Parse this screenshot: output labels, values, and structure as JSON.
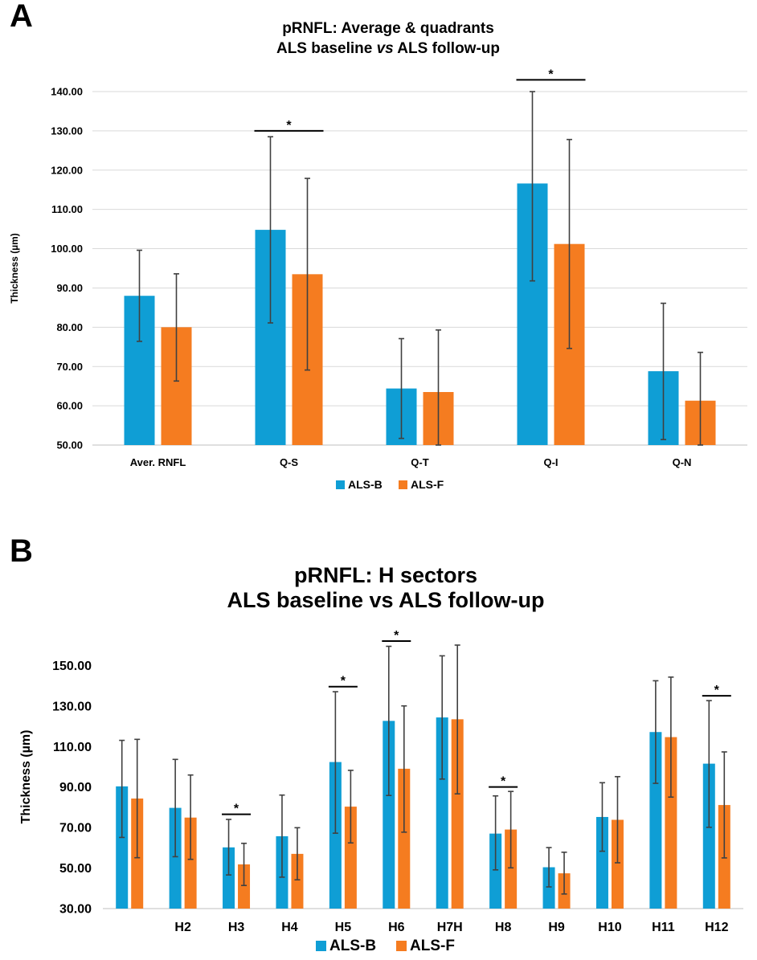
{
  "panels": [
    {
      "letter": "A"
    },
    {
      "letter": "B"
    }
  ],
  "chart_data": [
    {
      "type": "bar",
      "title": "pRNFL: Average & quadrants",
      "subtitle_parts": [
        "ALS baseline ",
        "vs",
        " ALS follow-up"
      ],
      "ylabel": "Thickness (µm)",
      "xlabel": "",
      "ylim": [
        50,
        140
      ],
      "ytick_step": 10,
      "ytick_labels": [
        "50.00",
        "60.00",
        "70.00",
        "80.00",
        "90.00",
        "100.00",
        "110.00",
        "120.00",
        "130.00",
        "140.00"
      ],
      "grid": true,
      "legend_position": "bottom",
      "categories": [
        "Aver. RNFL",
        "Q-S",
        "Q-T",
        "Q-I",
        "Q-N"
      ],
      "series": [
        {
          "name": "ALS-B",
          "color": "#0f9ed5",
          "values": [
            88.0,
            104.8,
            64.4,
            116.6,
            68.8
          ],
          "err_low": [
            76.4,
            81.1,
            51.7,
            91.8,
            51.4
          ],
          "err_high": [
            99.6,
            128.5,
            77.1,
            141.6,
            86.1
          ]
        },
        {
          "name": "ALS-F",
          "color": "#f57c20",
          "values": [
            80.0,
            93.5,
            63.5,
            101.2,
            61.3
          ],
          "err_low": [
            66.3,
            69.1,
            47.6,
            74.6,
            49.0
          ],
          "err_high": [
            93.6,
            117.9,
            79.3,
            127.8,
            73.6
          ]
        }
      ],
      "significance": [
        {
          "category": "Q-S",
          "label": "*",
          "y": 130
        },
        {
          "category": "Q-I",
          "label": "*",
          "y": 143
        }
      ]
    },
    {
      "type": "bar",
      "title": "pRNFL: H sectors",
      "subtitle": "ALS baseline vs ALS follow-up",
      "ylabel": "Thickness (µm)",
      "xlabel": "",
      "ylim": [
        30,
        160
      ],
      "ytick_step": 20,
      "ytick_labels": [
        "30.00",
        "50.00",
        "70.00",
        "90.00",
        "110.00",
        "130.00",
        "150.00"
      ],
      "grid": false,
      "legend_position": "bottom",
      "categories": [
        "",
        "H2",
        "H3",
        "H4",
        "H5",
        "H6",
        "H7H",
        "H8",
        "H9",
        "H10",
        "H11",
        "H12"
      ],
      "series": [
        {
          "name": "ALS-B",
          "color": "#0f9ed5",
          "values": [
            90.3,
            79.7,
            60.2,
            65.7,
            102.3,
            122.6,
            124.3,
            67.0,
            50.4,
            75.2,
            117.1,
            101.5
          ],
          "err_low": [
            65.1,
            55.6,
            46.6,
            45.5,
            67.2,
            85.8,
            93.9,
            49.1,
            40.7,
            58.3,
            91.8,
            70.1
          ],
          "err_high": [
            113.0,
            103.6,
            74.0,
            86.0,
            137.0,
            159.4,
            154.7,
            85.6,
            60.1,
            92.1,
            142.4,
            132.6
          ]
        },
        {
          "name": "ALS-F",
          "color": "#f57c20",
          "values": [
            84.3,
            74.9,
            51.8,
            57.0,
            80.3,
            99.0,
            123.4,
            69.0,
            47.4,
            73.8,
            114.6,
            81.1
          ],
          "err_low": [
            55.1,
            54.3,
            41.4,
            44.2,
            62.4,
            67.7,
            86.6,
            50.1,
            37.2,
            52.6,
            85.0,
            55.0
          ],
          "err_high": [
            113.5,
            95.9,
            62.2,
            69.9,
            98.2,
            130.0,
            160.0,
            87.8,
            57.8,
            95.1,
            144.2,
            107.3
          ]
        }
      ],
      "significance": [
        {
          "category": "H3",
          "label": "*",
          "y": 76.5
        },
        {
          "category": "H5",
          "label": "*",
          "y": 139.5
        },
        {
          "category": "H6",
          "label": "*",
          "y": 162
        },
        {
          "category": "H8",
          "label": "*",
          "y": 90
        },
        {
          "category": "H12",
          "label": "*",
          "y": 135
        }
      ]
    }
  ]
}
